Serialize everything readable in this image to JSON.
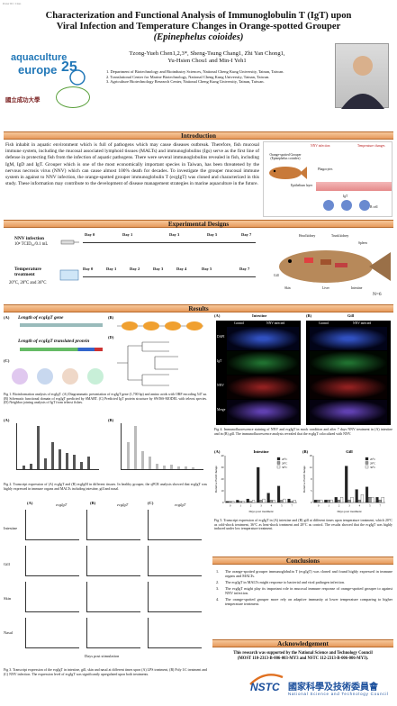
{
  "header": {
    "corner_tag": "Poster ID / Class",
    "title_line1": "Characterization and Functional Analysis of Immunoglobulin T (IgT) upon",
    "title_line2": "Viral Infection and Temperature Changes in Orange-spotted Grouper",
    "title_line3": "(Epinephelus coioides)",
    "authors_line1": "Tzong-Yueh Chen1,2,3*, Sheng-Tsung Chang1, Zhi Yan Chong1,",
    "authors_line2": "Yu-Hsien Chou1 and Min-I Yeh1",
    "affiliations": [
      "1.  Department of Biotechnology and Bioindustry Sciences, National Cheng Kung University, Tainan, Taiwan.",
      "2.  Translational Center for Marine Biotechnology, National Cheng Kung University, Tainan, Taiwan.",
      "3.  Agriculture Biotechnology Research Center, National Cheng Kung University, Tainan, Taiwan."
    ],
    "logo_text_1": "aquaculture",
    "logo_text_2": "europe",
    "logo_number": "25",
    "logo_ncku": "國立成功大學"
  },
  "introduction": {
    "heading": "Introduction",
    "text": "Fish inhabit in aquatic environment which is full of pathogens which may cause diseases outbreak. Therefore, fish mucosal immune system, including the mucosal associated lymphoid tissues (MALTs) and immunoglobulins (Igs) serve as the first line of defense in protecting fish from the infection of aquatic pathogens. There were several immunoglobulins revealed in fish, including IgM, IgD and IgT. Grouper which is one of the most economically important species in Taiwan, has been threatened by the nervous necrosis virus (NNV) which can cause almost 100% death for decades. To investigate the grouper mucosal immune system in against to NNV infection, the orange-spotted grouper immunoglobulin T (ecgIgT) was cloned and characterized in this study. These information may contribute to the development of disease management strategies in marine aquaculture in the future.",
    "fig_labels": [
      "NNV infection",
      "Temperature changes",
      "Orange-spotted Grouper (Epinephelus coioides)",
      "Phagocytes",
      "Epithelium layer",
      "IgT",
      "IgT B cell"
    ]
  },
  "experimental": {
    "heading": "Experimental Designs",
    "row1_label": "NNV infection",
    "row1_dose": "10⁸ TCID₅₀/0.1 mL",
    "row1_days": [
      "Day 0",
      "Day 1",
      "Day 3",
      "Day 5",
      "Day 7"
    ],
    "row2_label": "Temperature treatment",
    "row2_temps": "20°C, 28°C and 36°C",
    "row2_days": [
      "Day 0",
      "Day 1",
      "Day 2",
      "Day 3",
      "Day 4",
      "Day 5",
      "Day 7"
    ],
    "n_label": "N=6",
    "fish_labels": [
      "Head kidney",
      "Trunk kidney",
      "Spleen",
      "Liver",
      "Gill",
      "Skin",
      "Intestine"
    ]
  },
  "results": {
    "heading": "Results",
    "figA_title": "Length of ecgIgT gene",
    "figA2_title": "Length of ecgIgT translated protein",
    "fig1_caption": "Fig 1. Bioinformation analysis of ecgIgT. (A) Diagrammatic presentation of ecgIgT gene (1,700 bp) and amino acids with ORF encoding 547 aa. (B) Schematic functional domain of ecgIgT predicted by SMART. (C) Predicted IgT protein structure by SWISS-MODEL with teleost species. (D) Neighbor joining analysis of IgT from teleost fishes.",
    "fig2_caption": "Fig 2. Transcript expression of (A) ecgIgT and (B) ecgIgM in different tissues. In healthy grouper, the qPCR analysis showed that ecgIgT was highly expressed in immune organs and MALTs including intestine, gill and nasal.",
    "fig3_caption": "Fig 3. Transcript expression of the ecgIgT in intestine, gill, skin and nasal at different times upon (A) LPS treatment, (B) Poly I:C treatment and (C) NNV infection. The expression level of ecgIgT was significantly upregulated upon both treatments.",
    "fig3_cols": [
      "ecgIgT",
      "ecgIgT",
      "ecgIgT"
    ],
    "fig3_rows": [
      "Intestine",
      "Gill",
      "Skin",
      "Nasal"
    ],
    "fig3_xlabel": "Days post stimulation",
    "fig4_headers": [
      "Intestine",
      "Gill"
    ],
    "fig4_sub": [
      "Control",
      "NNV infected",
      "Control",
      "NNV infected"
    ],
    "fig4_rowlabels": [
      "DAPI",
      "IgT",
      "NNV",
      "Merge"
    ],
    "fig4_caption": "Fig 4. Immunofluorescence staining of NNV and ecgIgT in mock condition and after 7 days NNV treatment in (A) intestine and in (B) gill. The immunofluorescence analysis revealed that the ecgIgT colocalized with NNV.",
    "fig5_caption": "Fig 5. Transcript expression of ecgIgT in (A) intestine and (B) gill at different times upon temperature treatment, which 20°C as cold-shock treatment, 36°C as heat-shock treatment and 28°C as control. The results showed that the ecgIgT was highly induced under low temperature treatment.",
    "fig5_xlabel": "Days post treatment",
    "fig5_ylabel": "Relative Fold Change",
    "fig5_legend": [
      "20°C",
      "28°C",
      "36°C"
    ]
  },
  "chart_data": [
    {
      "type": "bar",
      "title": "Intestine",
      "categories": [
        "0",
        "1",
        "2",
        "3",
        "4",
        "5",
        "7"
      ],
      "ylabel": "Relative Fold Change",
      "xlabel": "Days post treatment",
      "ylim": [
        0,
        40
      ],
      "series": [
        {
          "name": "20°C",
          "values": [
            1,
            2,
            3,
            30,
            8,
            14,
            3
          ]
        },
        {
          "name": "28°C",
          "values": [
            1,
            1,
            1,
            2,
            2,
            2,
            1
          ]
        },
        {
          "name": "36°C",
          "values": [
            1,
            1,
            2,
            3,
            2,
            3,
            2
          ]
        }
      ]
    },
    {
      "type": "bar",
      "title": "Gill",
      "categories": [
        "0",
        "1",
        "2",
        "3",
        "4",
        "5",
        "7"
      ],
      "ylabel": "Relative Fold Change",
      "xlabel": "Days post treatment",
      "ylim": [
        0,
        18
      ],
      "series": [
        {
          "name": "20°C",
          "values": [
            1,
            1,
            2,
            14,
            5,
            6,
            2
          ]
        },
        {
          "name": "28°C",
          "values": [
            1,
            1,
            1,
            1,
            1,
            2,
            1
          ]
        },
        {
          "name": "36°C",
          "values": [
            1,
            1,
            2,
            2,
            3,
            2,
            2
          ]
        }
      ]
    }
  ],
  "conclusions": {
    "heading": "Conclusions",
    "items": [
      "The orange-spotted grouper immunoglobulin T (ecgIgT) was cloned and found highly expressed in immune organs and MALTs.",
      "The ecgIgT in MALTs might response to bacterial and viral pathogen infection.",
      "The ecgIgT might play its important role in mucosal immune response of orange-spotted grouper to against NNV infection.",
      "The orange-spotted grouper more rely on adaptive immunity at lower temperature comparing to higher temperature treatment."
    ]
  },
  "acknowledgement": {
    "heading": "Acknowledgement",
    "line1": "This research was supported by the National Science and Technology Council",
    "line2": "(MOST 110-2313-B-006-003-MY3 and NSTC 112-2313-B-006-006-MY3).",
    "nstc_abbr": "NSTC",
    "nstc_cn": "國家科學及技術委員會",
    "nstc_en": "National Science and Technology Council"
  },
  "colors": {
    "section_bar": "#e79a5c",
    "title": "#111111",
    "nstc_blue": "#1b4f9c",
    "aqua_blue": "#2278b8",
    "bar_dark": "#555555",
    "bar_light": "#bbbbbb"
  }
}
